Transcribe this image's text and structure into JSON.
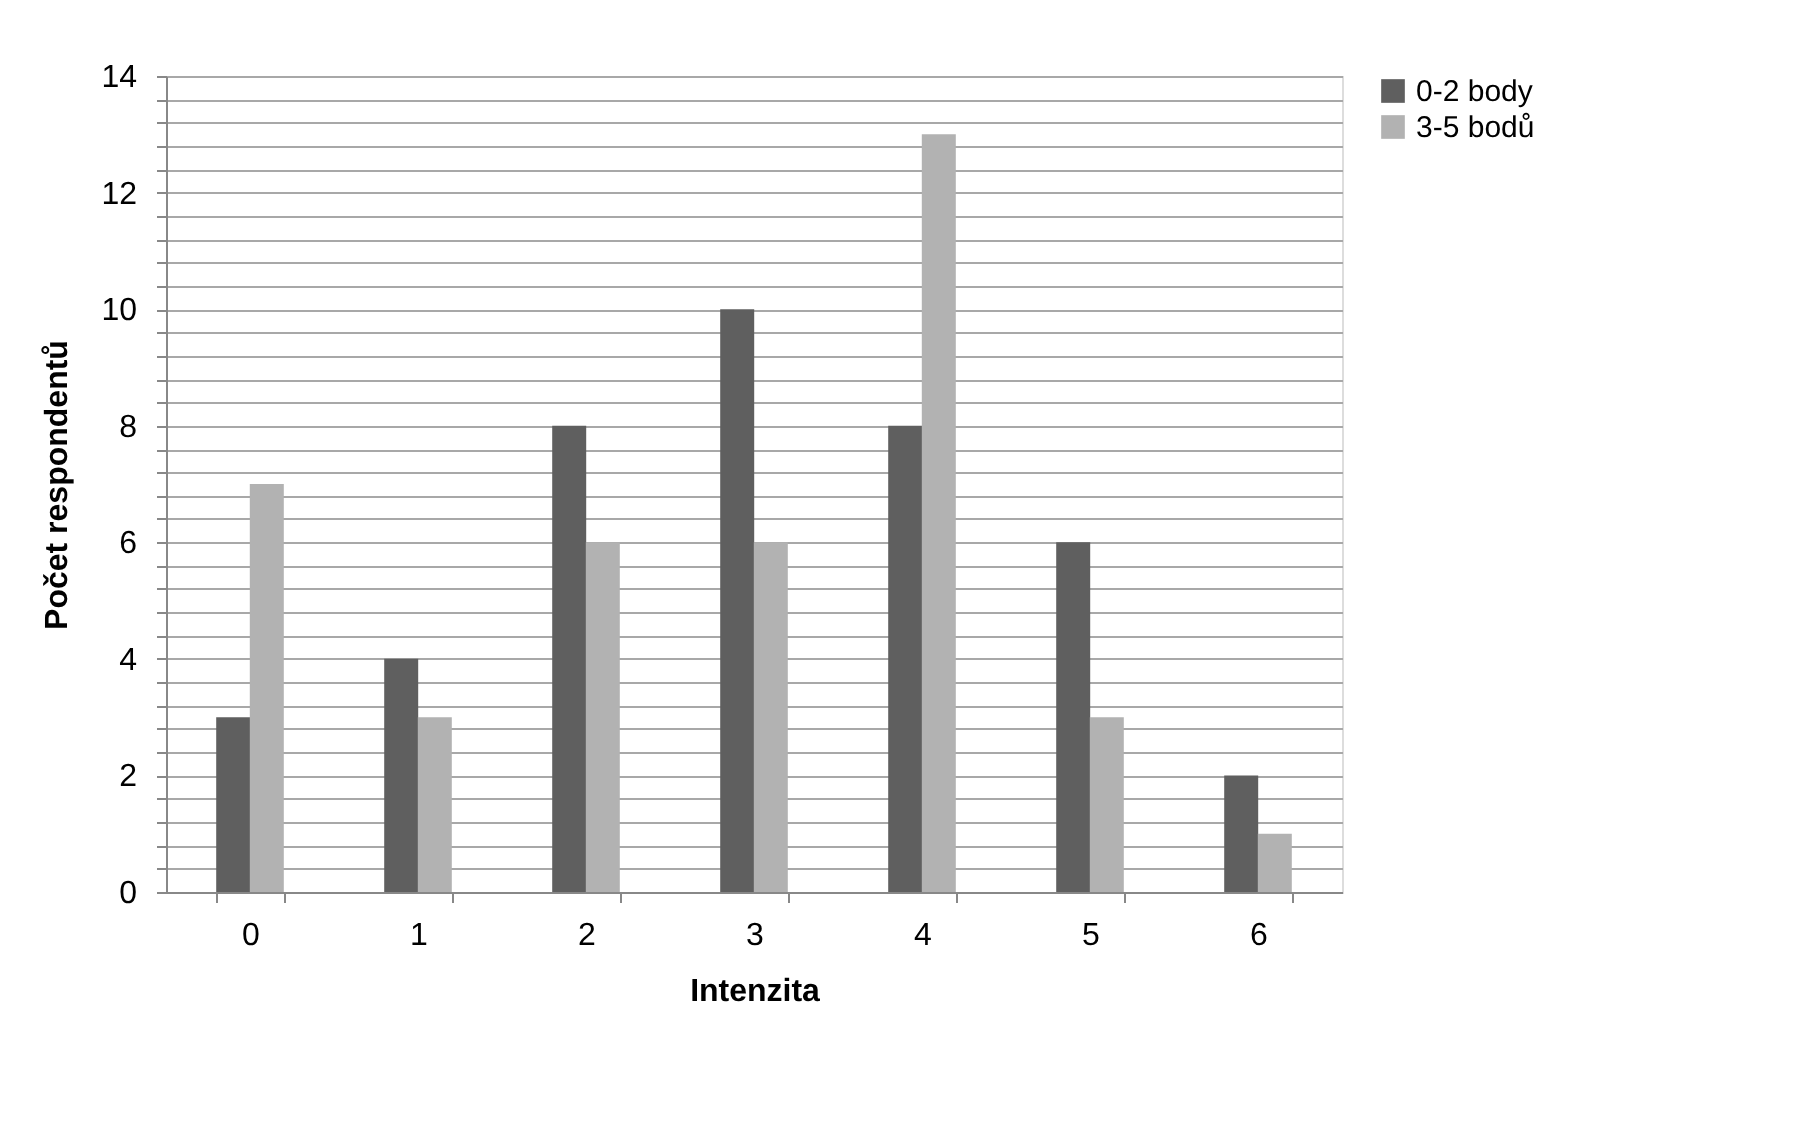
{
  "chart_data": {
    "type": "bar",
    "xlabel": "Intenzita",
    "ylabel": "Počet respondentů",
    "categories": [
      "0",
      "1",
      "2",
      "3",
      "4",
      "5",
      "6"
    ],
    "series": [
      {
        "name": "0-2 body",
        "color": "#5f5f5f",
        "values": [
          3,
          4,
          8,
          10,
          8,
          6,
          2
        ]
      },
      {
        "name": "3-5 bodů",
        "color": "#b2b2b2",
        "values": [
          7,
          3,
          6,
          6,
          13,
          3,
          1
        ]
      }
    ],
    "ylim": [
      0,
      14
    ],
    "yticks": [
      0,
      {
        "value": 0.4,
        "label": null
      },
      {
        "value": 0.8,
        "label": null
      },
      {
        "value": 1.2,
        "label": null
      },
      {
        "value": 1.6,
        "label": null
      },
      2,
      {
        "value": 2.4,
        "label": null
      },
      {
        "value": 2.8,
        "label": null
      },
      {
        "value": 3.2,
        "label": null
      },
      {
        "value": 3.6,
        "label": null
      },
      4,
      {
        "value": 4.4,
        "label": null
      },
      {
        "value": 4.8,
        "label": null
      },
      {
        "value": 5.2,
        "label": null
      },
      {
        "value": 5.6,
        "label": null
      },
      6,
      {
        "value": 6.4,
        "label": null
      },
      {
        "value": 6.8,
        "label": null
      },
      {
        "value": 7.2,
        "label": null
      },
      {
        "value": 7.6,
        "label": null
      },
      8,
      {
        "value": 8.4,
        "label": null
      },
      {
        "value": 8.8,
        "label": null
      },
      {
        "value": 9.2,
        "label": null
      },
      {
        "value": 9.6,
        "label": null
      },
      10,
      {
        "value": 10.4,
        "label": null
      },
      {
        "value": 10.8,
        "label": null
      },
      {
        "value": 11.2,
        "label": null
      },
      {
        "value": 11.6,
        "label": null
      },
      12,
      {
        "value": 12.4,
        "label": null
      },
      {
        "value": 12.8,
        "label": null
      },
      {
        "value": 13.2,
        "label": null
      },
      {
        "value": 13.6,
        "label": null
      },
      14
    ],
    "grid": "y",
    "legend": "right"
  }
}
